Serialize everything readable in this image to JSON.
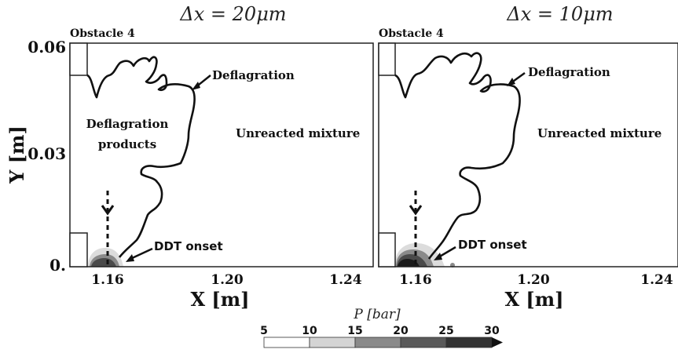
{
  "panels": [
    {
      "title": "Δx = 20μm",
      "obstacle_label": "Obstacle 4",
      "deflagration_label": "Deflagration",
      "products_label_line1": "Deflagration",
      "products_label_line2": "products",
      "unreacted_label": "Unreacted mixture",
      "ddt_label": "DDT onset"
    },
    {
      "title": "Δx = 10μm",
      "obstacle_label": "Obstacle 4",
      "deflagration_label": "Deflagration",
      "unreacted_label": "Unreacted mixture",
      "ddt_label": "DDT onset"
    }
  ],
  "axes": {
    "y_label": "Y [m]",
    "x_label": "X [m]",
    "y_ticks": [
      "0.06",
      "0.03",
      "0."
    ],
    "x_ticks": [
      "1.16",
      "1.20",
      "1.24"
    ]
  },
  "colorbar": {
    "title": "P [bar]",
    "ticks": [
      "5",
      "10",
      "15",
      "20",
      "25",
      "30"
    ],
    "colors": [
      "#ffffff",
      "#d4d4d4",
      "#8a8a8a",
      "#5a5a5a",
      "#333333",
      "#111111"
    ]
  }
}
